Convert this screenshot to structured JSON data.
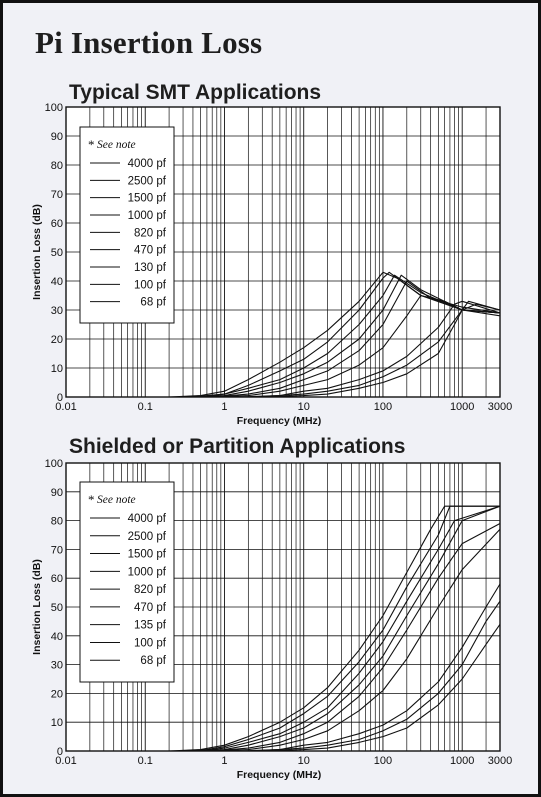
{
  "page": {
    "title": "Pi Insertion Loss"
  },
  "chart_data": [
    {
      "type": "line",
      "title": "Typical SMT Applications",
      "xlabel": "Frequency (MHz)",
      "ylabel": "Insertion Loss (dB)",
      "x_scale": "log",
      "xlim": [
        0.01,
        3000
      ],
      "ylim": [
        0,
        100
      ],
      "x_ticks": [
        0.01,
        0.1,
        1,
        10,
        100,
        1000,
        3000
      ],
      "x_tick_labels": [
        "0.01",
        "0.1",
        "1",
        "10",
        "100",
        "1000",
        "3000"
      ],
      "y_ticks": [
        0,
        10,
        20,
        30,
        40,
        50,
        60,
        70,
        80,
        90,
        100
      ],
      "y_tick_labels": [
        "0",
        "10",
        "20",
        "30",
        "40",
        "50",
        "60",
        "70",
        "80",
        "90",
        "100"
      ],
      "grid": true,
      "legend": {
        "position": "top-left",
        "note_symbol": "*",
        "note": "See note",
        "entries": [
          "4000 pf",
          "2500 pf",
          "1500 pf",
          "1000 pf",
          "820 pf",
          "470 pf",
          "130 pf",
          "100 pf",
          "68 pf"
        ]
      },
      "series": [
        {
          "label": "4000 pf",
          "x": [
            0.2,
            0.5,
            1,
            2,
            5,
            10,
            20,
            50,
            100,
            150,
            300,
            1000,
            3000
          ],
          "y": [
            0,
            0.5,
            2,
            6,
            12,
            17,
            23,
            33,
            43,
            41,
            35,
            31,
            29
          ]
        },
        {
          "label": "2500 pf",
          "x": [
            0.25,
            0.6,
            1,
            2,
            5,
            10,
            20,
            50,
            100,
            120,
            300,
            1000,
            3000
          ],
          "y": [
            0,
            0.5,
            1,
            4,
            9,
            13,
            19,
            30,
            41,
            43,
            35,
            30,
            29
          ]
        },
        {
          "label": "1500 pf",
          "x": [
            0.3,
            0.7,
            1,
            2,
            5,
            10,
            20,
            50,
            100,
            140,
            300,
            1000,
            3000
          ],
          "y": [
            0,
            0.4,
            1,
            3,
            6,
            10,
            15,
            25,
            35,
            42,
            36,
            30,
            29
          ]
        },
        {
          "label": "1000 pf",
          "x": [
            0.4,
            1,
            2,
            5,
            10,
            20,
            50,
            100,
            170,
            300,
            1000,
            3000
          ],
          "y": [
            0,
            0.5,
            2,
            5,
            8,
            12,
            20,
            30,
            42,
            37,
            30,
            29
          ]
        },
        {
          "label": "820 pf",
          "x": [
            0.5,
            1,
            2,
            5,
            10,
            20,
            50,
            100,
            200,
            400,
            1000,
            3000
          ],
          "y": [
            0,
            0.3,
            1,
            3,
            6,
            9,
            16,
            25,
            40,
            34,
            30,
            28
          ]
        },
        {
          "label": "470 pf",
          "x": [
            0.7,
            2,
            5,
            10,
            20,
            50,
            100,
            200,
            300,
            600,
            1000,
            3000
          ],
          "y": [
            0,
            0.5,
            2,
            4,
            6,
            11,
            17,
            28,
            35,
            33,
            30,
            29
          ]
        },
        {
          "label": "130 pf",
          "x": [
            1.5,
            5,
            10,
            20,
            50,
            100,
            200,
            500,
            800,
            1000,
            3000
          ],
          "y": [
            0,
            0.5,
            2,
            3,
            6,
            9,
            14,
            24,
            32,
            33,
            29
          ]
        },
        {
          "label": "100 pf",
          "x": [
            2,
            5,
            10,
            20,
            50,
            100,
            200,
            500,
            1000,
            1200,
            3000
          ],
          "y": [
            0,
            0.5,
            1,
            2,
            4,
            7,
            11,
            19,
            30,
            33,
            30
          ]
        },
        {
          "label": "68 pf",
          "x": [
            3,
            10,
            20,
            50,
            100,
            200,
            500,
            800,
            1000,
            1500,
            3000
          ],
          "y": [
            0,
            0.5,
            1,
            3,
            5,
            8,
            15,
            25,
            30,
            32,
            30
          ]
        }
      ]
    },
    {
      "type": "line",
      "title": "Shielded or Partition Applications",
      "xlabel": "Frequency (MHz)",
      "ylabel": "Insertion Loss (dB)",
      "x_scale": "log",
      "xlim": [
        0.01,
        3000
      ],
      "ylim": [
        0,
        100
      ],
      "x_ticks": [
        0.01,
        0.1,
        1,
        10,
        100,
        1000,
        3000
      ],
      "x_tick_labels": [
        "0.01",
        "0.1",
        "1",
        "10",
        "100",
        "1000",
        "3000"
      ],
      "y_ticks": [
        0,
        10,
        20,
        30,
        40,
        50,
        60,
        70,
        80,
        90,
        100
      ],
      "y_tick_labels": [
        "0",
        "10",
        "20",
        "30",
        "40",
        "50",
        "60",
        "70",
        "80",
        "90",
        "100"
      ],
      "grid": true,
      "legend": {
        "position": "top-left",
        "note_symbol": "*",
        "note": "See note",
        "entries": [
          "4000 pf",
          "2500 pf",
          "1500 pf",
          "1000 pf",
          "820 pf",
          "470 pf",
          "135 pf",
          "100 pf",
          "68 pf"
        ]
      },
      "series": [
        {
          "label": "4000 pf",
          "x": [
            0.2,
            0.5,
            1,
            2,
            5,
            10,
            20,
            50,
            100,
            200,
            400,
            600,
            3000
          ],
          "y": [
            0,
            0.5,
            2,
            5,
            10,
            15,
            22,
            35,
            47,
            62,
            77,
            85,
            85
          ]
        },
        {
          "label": "2500 pf",
          "x": [
            0.25,
            0.6,
            1,
            2,
            5,
            10,
            20,
            50,
            100,
            200,
            500,
            700,
            3000
          ],
          "y": [
            0,
            0.5,
            1.5,
            4,
            8,
            13,
            19,
            31,
            42,
            57,
            75,
            85,
            85
          ]
        },
        {
          "label": "1500 pf",
          "x": [
            0.3,
            0.7,
            1,
            2,
            5,
            10,
            20,
            50,
            100,
            200,
            500,
            800,
            3000
          ],
          "y": [
            0,
            0.5,
            1,
            3,
            6,
            10,
            15,
            27,
            38,
            52,
            70,
            80,
            85
          ]
        },
        {
          "label": "1000 pf",
          "x": [
            0.4,
            1,
            2,
            5,
            10,
            20,
            50,
            100,
            200,
            500,
            1000,
            3000
          ],
          "y": [
            0,
            0.5,
            2,
            5,
            8,
            13,
            23,
            33,
            47,
            65,
            80,
            85
          ]
        },
        {
          "label": "820 pf",
          "x": [
            0.5,
            1,
            2,
            5,
            10,
            20,
            50,
            100,
            200,
            500,
            1000,
            3000
          ],
          "y": [
            0,
            0.3,
            1,
            3,
            6,
            10,
            19,
            29,
            42,
            60,
            72,
            79
          ]
        },
        {
          "label": "470 pf",
          "x": [
            0.7,
            2,
            5,
            10,
            20,
            50,
            100,
            200,
            500,
            1000,
            3000
          ],
          "y": [
            0,
            0.5,
            2,
            4,
            7,
            14,
            21,
            32,
            50,
            63,
            77
          ]
        },
        {
          "label": "135 pf",
          "x": [
            1.5,
            5,
            10,
            20,
            50,
            100,
            200,
            500,
            1000,
            2000,
            3000
          ],
          "y": [
            0,
            0.5,
            2,
            3,
            6,
            9,
            14,
            24,
            36,
            50,
            58
          ]
        },
        {
          "label": "100 pf",
          "x": [
            2,
            5,
            10,
            20,
            50,
            100,
            200,
            500,
            1000,
            2000,
            3000
          ],
          "y": [
            0,
            0.5,
            1,
            2,
            4,
            7,
            11,
            20,
            30,
            45,
            52
          ]
        },
        {
          "label": "68 pf",
          "x": [
            3,
            10,
            20,
            50,
            100,
            200,
            500,
            1000,
            2000,
            3000
          ],
          "y": [
            0,
            0.5,
            1,
            3,
            5,
            8,
            16,
            25,
            37,
            44
          ]
        }
      ]
    }
  ]
}
